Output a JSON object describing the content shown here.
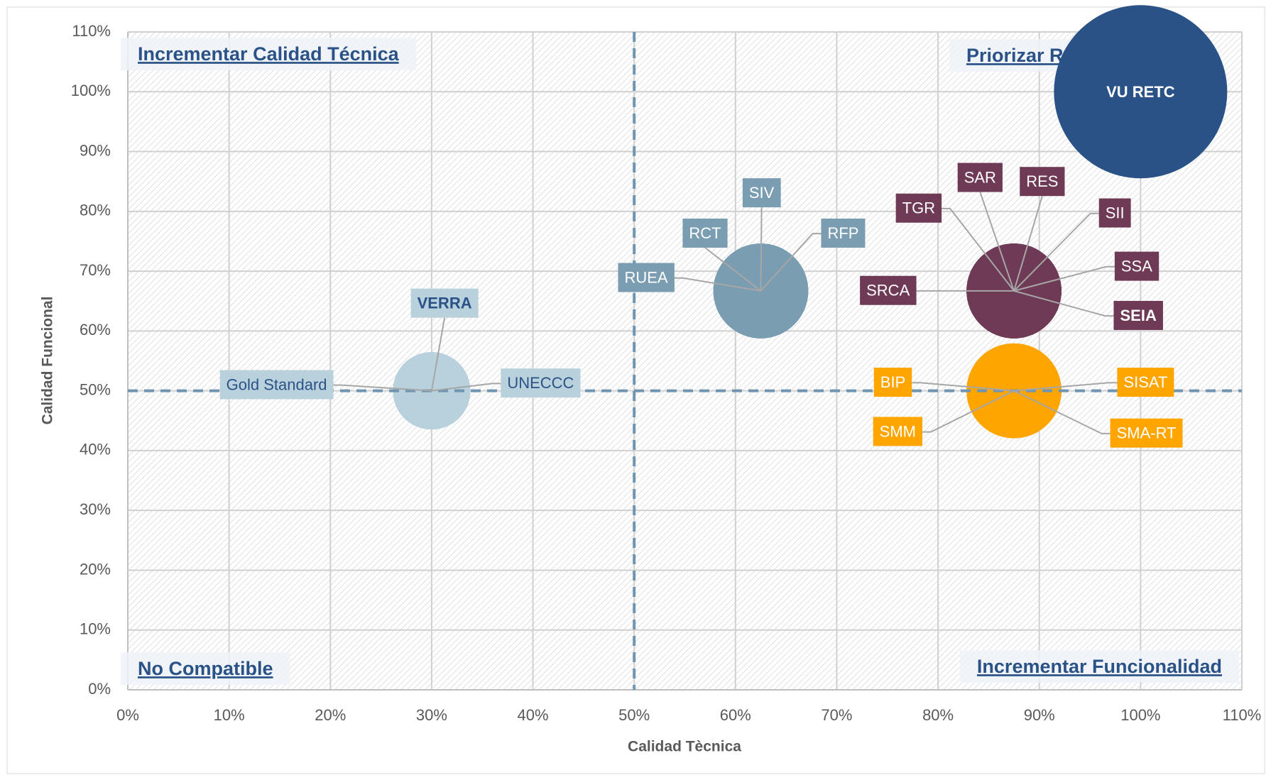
{
  "chart_data": {
    "type": "bubble",
    "x_label": "Calidad Tècnica",
    "y_label": "Calidad Funcional",
    "xlim": [
      0,
      110
    ],
    "ylim": [
      0,
      110
    ],
    "xticks": [
      {
        "value": 0,
        "label": "0%"
      },
      {
        "value": 10,
        "label": "10%"
      },
      {
        "value": 20,
        "label": "20%"
      },
      {
        "value": 30,
        "label": "30%"
      },
      {
        "value": 40,
        "label": "40%"
      },
      {
        "value": 50,
        "label": "50%"
      },
      {
        "value": 60,
        "label": "60%"
      },
      {
        "value": 70,
        "label": "70%"
      },
      {
        "value": 80,
        "label": "80%"
      },
      {
        "value": 90,
        "label": "90%"
      },
      {
        "value": 100,
        "label": "100%"
      },
      {
        "value": 110,
        "label": "110%"
      }
    ],
    "yticks": [
      {
        "value": 0,
        "label": "0%"
      },
      {
        "value": 10,
        "label": "10%"
      },
      {
        "value": 20,
        "label": "20%"
      },
      {
        "value": 30,
        "label": "30%"
      },
      {
        "value": 40,
        "label": "40%"
      },
      {
        "value": 50,
        "label": "50%"
      },
      {
        "value": 60,
        "label": "60%"
      },
      {
        "value": 70,
        "label": "70%"
      },
      {
        "value": 80,
        "label": "80%"
      },
      {
        "value": 90,
        "label": "90%"
      },
      {
        "value": 100,
        "label": "100%"
      },
      {
        "value": 110,
        "label": "110%"
      }
    ],
    "grid": true,
    "xref": 50,
    "yref": 50,
    "annotations": [
      "Incrementar Calidad Técnica",
      "Priorizar Reutilización",
      "No Compatible",
      "Incrementar Funcionalidad"
    ],
    "points": [
      {
        "label": "VU RETC",
        "x": 100,
        "y": 100,
        "size": 100,
        "color": "#2a5286"
      },
      {
        "label": "SAR",
        "x": 87.5,
        "y": 66.7,
        "size": 30,
        "color": "#6e3a55"
      },
      {
        "label": "RES",
        "x": 87.5,
        "y": 66.7,
        "size": 30,
        "color": "#6e3a55"
      },
      {
        "label": "TGR",
        "x": 87.5,
        "y": 66.7,
        "size": 30,
        "color": "#6e3a55"
      },
      {
        "label": "SII",
        "x": 87.5,
        "y": 66.7,
        "size": 30,
        "color": "#6e3a55"
      },
      {
        "label": "SSA",
        "x": 87.5,
        "y": 66.7,
        "size": 30,
        "color": "#6e3a55"
      },
      {
        "label": "SRCA",
        "x": 87.5,
        "y": 66.7,
        "size": 30,
        "color": "#6e3a55"
      },
      {
        "label": "SEIA",
        "x": 87.5,
        "y": 66.7,
        "size": 30,
        "color": "#6e3a55"
      },
      {
        "label": "BIP",
        "x": 87.5,
        "y": 50,
        "size": 30,
        "color": "#ffa500"
      },
      {
        "label": "SISAT",
        "x": 87.5,
        "y": 50,
        "size": 30,
        "color": "#ffa500"
      },
      {
        "label": "SMM",
        "x": 87.5,
        "y": 50,
        "size": 30,
        "color": "#ffa500"
      },
      {
        "label": "SMA-RT",
        "x": 87.5,
        "y": 50,
        "size": 30,
        "color": "#ffa500"
      },
      {
        "label": "SIV",
        "x": 62.5,
        "y": 66.7,
        "size": 30,
        "color": "#7a9db2"
      },
      {
        "label": "RCT",
        "x": 62.5,
        "y": 66.7,
        "size": 30,
        "color": "#7a9db2"
      },
      {
        "label": "RFP",
        "x": 62.5,
        "y": 66.7,
        "size": 30,
        "color": "#7a9db2"
      },
      {
        "label": "RUEA",
        "x": 62.5,
        "y": 66.7,
        "size": 30,
        "color": "#7a9db2"
      },
      {
        "label": "VERRA",
        "x": 30,
        "y": 50,
        "size": 20,
        "color": "#b8d1dc"
      },
      {
        "label": "Gold Standard",
        "x": 30,
        "y": 50,
        "size": 20,
        "color": "#b8d1dc"
      },
      {
        "label": "UNECCC",
        "x": 30,
        "y": 50,
        "size": 20,
        "color": "#b8d1dc"
      }
    ]
  }
}
